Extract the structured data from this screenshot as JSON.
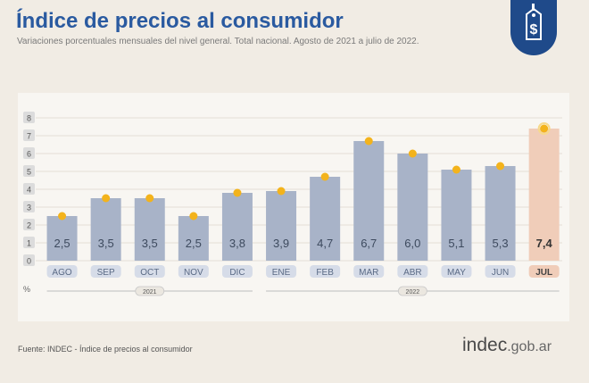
{
  "header": {
    "title": "Índice de precios al consumidor",
    "subtitle": "Variaciones porcentuales mensuales del nivel general. Total nacional. Agosto de 2021 a julio de 2022."
  },
  "logo_icon": "price-tag-dollar-icon",
  "chart_data": {
    "type": "bar",
    "categories": [
      "AGO",
      "SEP",
      "OCT",
      "NOV",
      "DIC",
      "ENE",
      "FEB",
      "MAR",
      "ABR",
      "MAY",
      "JUN",
      "JUL"
    ],
    "values": [
      2.5,
      3.5,
      3.5,
      2.5,
      3.8,
      3.9,
      4.7,
      6.7,
      6.0,
      5.1,
      5.3,
      7.4
    ],
    "value_labels": [
      "2,5",
      "3,5",
      "3,5",
      "2,5",
      "3,8",
      "3,9",
      "4,7",
      "6,7",
      "6,0",
      "5,1",
      "5,3",
      "7,4"
    ],
    "year_groups": [
      {
        "label": "2021",
        "from": 0,
        "to": 4
      },
      {
        "label": "2022",
        "from": 5,
        "to": 11
      }
    ],
    "yticks": [
      "0",
      "1",
      "2",
      "3",
      "4",
      "5",
      "6",
      "7",
      "8"
    ],
    "ylim": [
      0,
      8
    ],
    "yunit": "%",
    "highlight_index": 11,
    "colors": {
      "bar": "#a8b3c8",
      "bar_highlight": "#f0cdb9",
      "marker": "#f3b31c",
      "label_bg": "#d6dce8",
      "label_bg_highlight": "#f0cdb9"
    }
  },
  "footer": {
    "source": "Fuente: INDEC - Índice de precios al consumidor",
    "brand_main": "indec",
    "brand_suffix": ".gob.ar"
  }
}
